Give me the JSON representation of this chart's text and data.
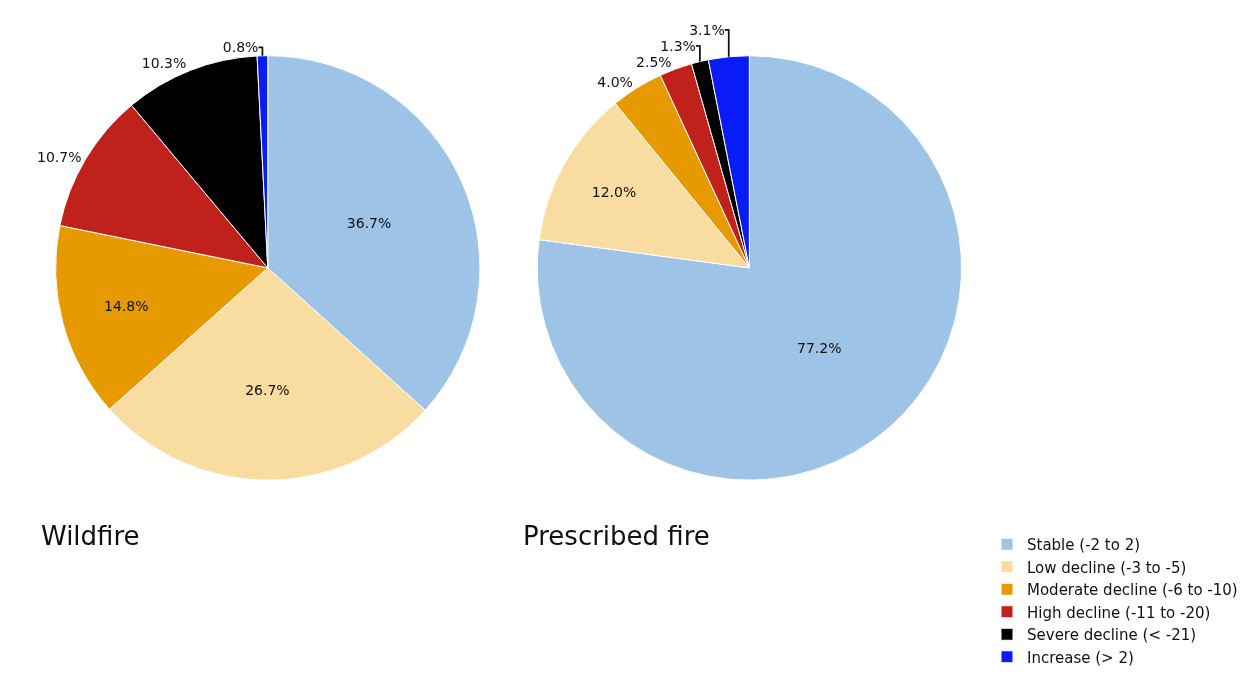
{
  "chart_data": [
    {
      "type": "pie",
      "title": "Wildfire",
      "categories": [
        "Stable (-2 to 2)",
        "Low decline (-3 to -5)",
        "Moderate decline (-6 to -10)",
        "High decline (-11 to -20)",
        "Severe decline (< -21)",
        "Increase (> 2)"
      ],
      "values": [
        36.7,
        26.7,
        14.8,
        10.7,
        10.3,
        0.8
      ],
      "value_labels": [
        "36.7%",
        "26.7%",
        "14.8%",
        "10.7%",
        "10.3%",
        "0.8%"
      ],
      "colors": [
        "#9dc3e6",
        "#f8dca0",
        "#e69a00",
        "#c0211a",
        "#000000",
        "#0a1cf5"
      ],
      "legend": "bottom right"
    },
    {
      "type": "pie",
      "title": "Prescribed fire",
      "categories": [
        null,
        null,
        null,
        null,
        null,
        null
      ],
      "values": [
        77.2,
        12.0,
        4.0,
        2.5,
        1.3,
        3.1
      ],
      "value_labels": [
        "77.2%",
        "12.0%",
        "4.0%",
        "2.5%",
        "1.3%",
        "3.1%"
      ],
      "colors": [
        "#9dc3e6",
        "#f8dca0",
        "#e69a00",
        "#c0211a",
        "#000000",
        "#0a1cf5"
      ]
    }
  ]
}
